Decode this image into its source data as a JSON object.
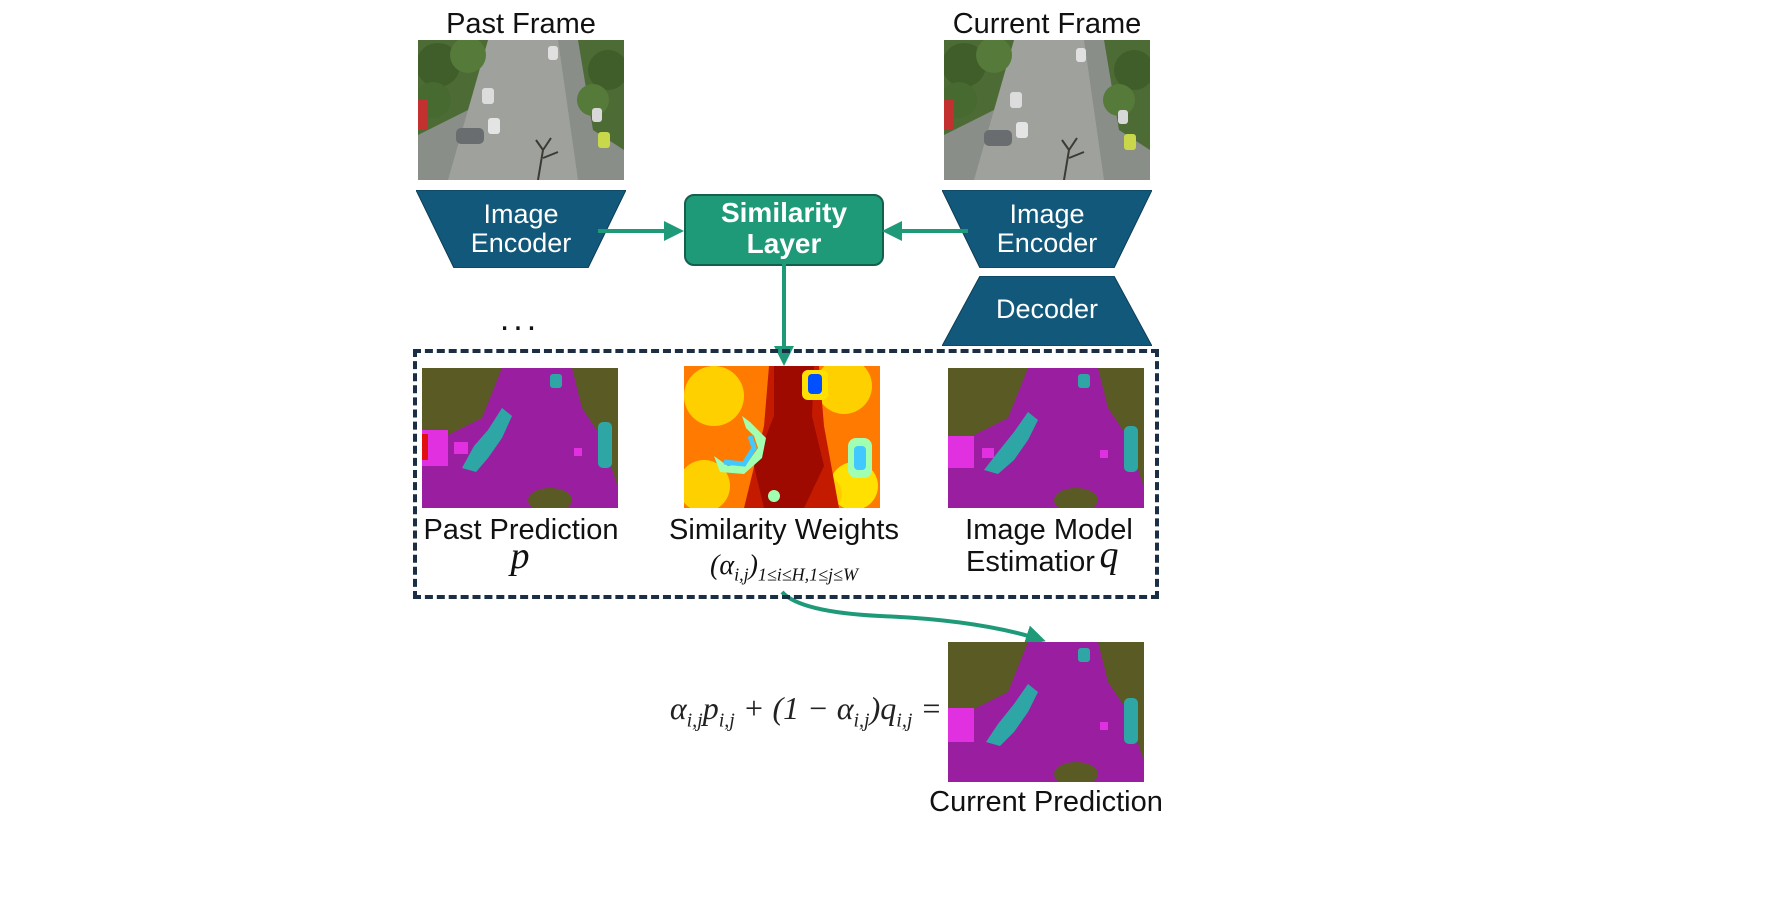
{
  "frames": {
    "past_label": "Past Frame",
    "current_label": "Current Frame"
  },
  "encoders": {
    "left_label": "Image\nEncoder",
    "right_label": "Image\nEncoder",
    "decoder_label": "Decoder"
  },
  "similarity_layer": {
    "label": "Similarity\nLayer"
  },
  "ellipsis": "...",
  "panels": {
    "past_prediction": {
      "label": "Past Prediction",
      "symbol": "p"
    },
    "similarity_weights": {
      "label": "Similarity Weights",
      "formula": "(α_{i,j})_{1≤i≤H,1≤j≤W}"
    },
    "image_model": {
      "label_line1": "Image Model",
      "label_line2": "Estimatior",
      "symbol": "q"
    }
  },
  "output": {
    "equation": "α_{i,j}p_{i,j} + (1 − α_{i,j})q_{i,j} =",
    "label": "Current Prediction"
  },
  "colors": {
    "encoder_fill": "#12587a",
    "similarity_fill": "#1f9a78",
    "arrow": "#1f9a78",
    "dashed_border": "#1a2e45",
    "road_magenta": "#9a1fa0",
    "vegetation": "#5a5a24",
    "vehicle_cyan": "#2fa6a6"
  },
  "icons": [
    "aerial-street-photo",
    "segmentation-map",
    "heatmap"
  ]
}
